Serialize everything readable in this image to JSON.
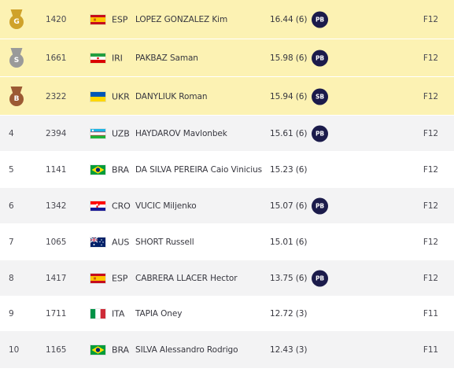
{
  "results": [
    {
      "medal": "gold",
      "medal_letter": "G",
      "rank": "",
      "bib": "1420",
      "flag": "spain-flag",
      "npc": "ESP",
      "name": "LOPEZ GONZALEZ Kim",
      "result": "16.44 (6)",
      "record": "PB",
      "class": "F12"
    },
    {
      "medal": "silver",
      "medal_letter": "S",
      "rank": "",
      "bib": "1661",
      "flag": "iran-flag",
      "npc": "IRI",
      "name": "PAKBAZ Saman",
      "result": "15.98 (6)",
      "record": "PB",
      "class": "F12"
    },
    {
      "medal": "bronze",
      "medal_letter": "B",
      "rank": "",
      "bib": "2322",
      "flag": "ukraine-flag",
      "npc": "UKR",
      "name": "DANYLIUK Roman",
      "result": "15.94 (6)",
      "record": "SB",
      "class": "F12"
    },
    {
      "medal": "",
      "rank": "4",
      "bib": "2394",
      "flag": "uzbekistan-flag",
      "npc": "UZB",
      "name": "HAYDAROV Mavlonbek",
      "result": "15.61 (6)",
      "record": "PB",
      "class": "F12"
    },
    {
      "medal": "",
      "rank": "5",
      "bib": "1141",
      "flag": "brazil-flag",
      "npc": "BRA",
      "name": "DA SILVA PEREIRA Caio Vinicius",
      "result": "15.23 (6)",
      "record": "",
      "class": "F12"
    },
    {
      "medal": "",
      "rank": "6",
      "bib": "1342",
      "flag": "croatia-flag",
      "npc": "CRO",
      "name": "VUCIC Miljenko",
      "result": "15.07 (6)",
      "record": "PB",
      "class": "F12"
    },
    {
      "medal": "",
      "rank": "7",
      "bib": "1065",
      "flag": "australia-flag",
      "npc": "AUS",
      "name": "SHORT Russell",
      "result": "15.01 (6)",
      "record": "",
      "class": "F12"
    },
    {
      "medal": "",
      "rank": "8",
      "bib": "1417",
      "flag": "spain-flag",
      "npc": "ESP",
      "name": "CABRERA LLACER Hector",
      "result": "13.75 (6)",
      "record": "PB",
      "class": "F12"
    },
    {
      "medal": "",
      "rank": "9",
      "bib": "1711",
      "flag": "italy-flag",
      "npc": "ITA",
      "name": "TAPIA Oney",
      "result": "12.72 (3)",
      "record": "",
      "class": "F11"
    },
    {
      "medal": "",
      "rank": "10",
      "bib": "1165",
      "flag": "brazil-flag",
      "npc": "BRA",
      "name": "SILVA Alessandro Rodrigo",
      "result": "12.43 (3)",
      "record": "",
      "class": "F11"
    }
  ],
  "colors": {
    "medal_row_bg": "#fcf2b3",
    "row_bg": "#f3f3f4",
    "record_badge_bg": "#1b1b4b",
    "gold": "#cfa22b",
    "silver": "#9a9a9a",
    "bronze": "#9c5a33"
  }
}
